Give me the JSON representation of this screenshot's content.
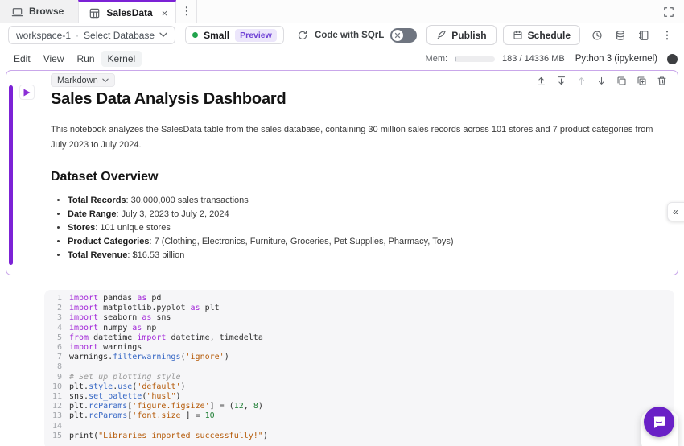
{
  "colors": {
    "accent_purple": "#7c22d6",
    "cell_border_purple": "#c9a7ea",
    "preview_badge_bg": "#ece6fb",
    "preview_badge_text": "#6d3fd4",
    "status_green": "#21a34c",
    "chat_bubble_purple": "#6920c6"
  },
  "icons": {
    "close": "×",
    "kebab": "⋮",
    "collapse": "«",
    "separator": "·"
  },
  "tabs": {
    "browse_label": "Browse",
    "active_tab_label": "SalesData"
  },
  "toolbar": {
    "workspace_label": "workspace-1",
    "database_selector_label": "Select Database",
    "machine_label": "Small",
    "preview_badge": "Preview",
    "sqrl_toggle_label": "Code with SQrL",
    "publish_label": "Publish",
    "schedule_label": "Schedule"
  },
  "menubar": {
    "items": [
      "Edit",
      "View",
      "Run",
      "Kernel"
    ],
    "mem_label": "Mem:",
    "mem_value": "183 / 14336 MB",
    "mem_used_mb": 183,
    "mem_total_mb": 14336,
    "kernel_name": "Python 3 (ipykernel)"
  },
  "markdown_cell": {
    "cell_type_label": "Markdown",
    "title": "Sales Data Analysis Dashboard",
    "intro": "This notebook analyzes the SalesData table from the sales database, containing 30 million sales records across 101 stores and 7 product categories from July 2023 to July 2024.",
    "section_title": "Dataset Overview",
    "bullets": [
      {
        "label": "Total Records",
        "text": ": 30,000,000 sales transactions"
      },
      {
        "label": "Date Range",
        "text": ": July 3, 2023 to July 2, 2024"
      },
      {
        "label": "Stores",
        "text": ": 101 unique stores"
      },
      {
        "label": "Product Categories",
        "text": ": 7 (Clothing, Electronics, Furniture, Groceries, Pet Supplies, Pharmacy, Toys)"
      },
      {
        "label": "Total Revenue",
        "text": ": $16.53 billion"
      }
    ]
  },
  "code_cell": {
    "language": "python",
    "lines": [
      [
        [
          "kw",
          "import"
        ],
        [
          "pl",
          " pandas "
        ],
        [
          "kw",
          "as"
        ],
        [
          "pl",
          " pd"
        ]
      ],
      [
        [
          "kw",
          "import"
        ],
        [
          "pl",
          " matplotlib.pyplot "
        ],
        [
          "kw",
          "as"
        ],
        [
          "pl",
          " plt"
        ]
      ],
      [
        [
          "kw",
          "import"
        ],
        [
          "pl",
          " seaborn "
        ],
        [
          "kw",
          "as"
        ],
        [
          "pl",
          " sns"
        ]
      ],
      [
        [
          "kw",
          "import"
        ],
        [
          "pl",
          " numpy "
        ],
        [
          "kw",
          "as"
        ],
        [
          "pl",
          " np"
        ]
      ],
      [
        [
          "kw",
          "from"
        ],
        [
          "pl",
          " datetime "
        ],
        [
          "kw",
          "import"
        ],
        [
          "pl",
          " datetime, timedelta"
        ]
      ],
      [
        [
          "kw",
          "import"
        ],
        [
          "pl",
          " warnings"
        ]
      ],
      [
        [
          "pl",
          "warnings."
        ],
        [
          "fn",
          "filterwarnings"
        ],
        [
          "pl",
          "("
        ],
        [
          "str",
          "'ignore'"
        ],
        [
          "pl",
          ")"
        ]
      ],
      [],
      [
        [
          "cm",
          "# Set up plotting style"
        ]
      ],
      [
        [
          "pl",
          "plt."
        ],
        [
          "fn",
          "style"
        ],
        [
          "pl",
          "."
        ],
        [
          "fn",
          "use"
        ],
        [
          "pl",
          "("
        ],
        [
          "str",
          "'default'"
        ],
        [
          "pl",
          ")"
        ]
      ],
      [
        [
          "pl",
          "sns."
        ],
        [
          "fn",
          "set_palette"
        ],
        [
          "pl",
          "("
        ],
        [
          "str",
          "\"husl\""
        ],
        [
          "pl",
          ")"
        ]
      ],
      [
        [
          "pl",
          "plt."
        ],
        [
          "fn",
          "rcParams"
        ],
        [
          "pl",
          "["
        ],
        [
          "str",
          "'figure.figsize'"
        ],
        [
          "pl",
          "] = ("
        ],
        [
          "num",
          "12"
        ],
        [
          "pl",
          ", "
        ],
        [
          "num",
          "8"
        ],
        [
          "pl",
          ")"
        ]
      ],
      [
        [
          "pl",
          "plt."
        ],
        [
          "fn",
          "rcParams"
        ],
        [
          "pl",
          "["
        ],
        [
          "str",
          "'font.size'"
        ],
        [
          "pl",
          "] = "
        ],
        [
          "num",
          "10"
        ]
      ],
      [],
      [
        [
          "pl",
          "print("
        ],
        [
          "str",
          "\"Libraries imported successfully!\""
        ],
        [
          "pl",
          ")"
        ]
      ]
    ]
  }
}
